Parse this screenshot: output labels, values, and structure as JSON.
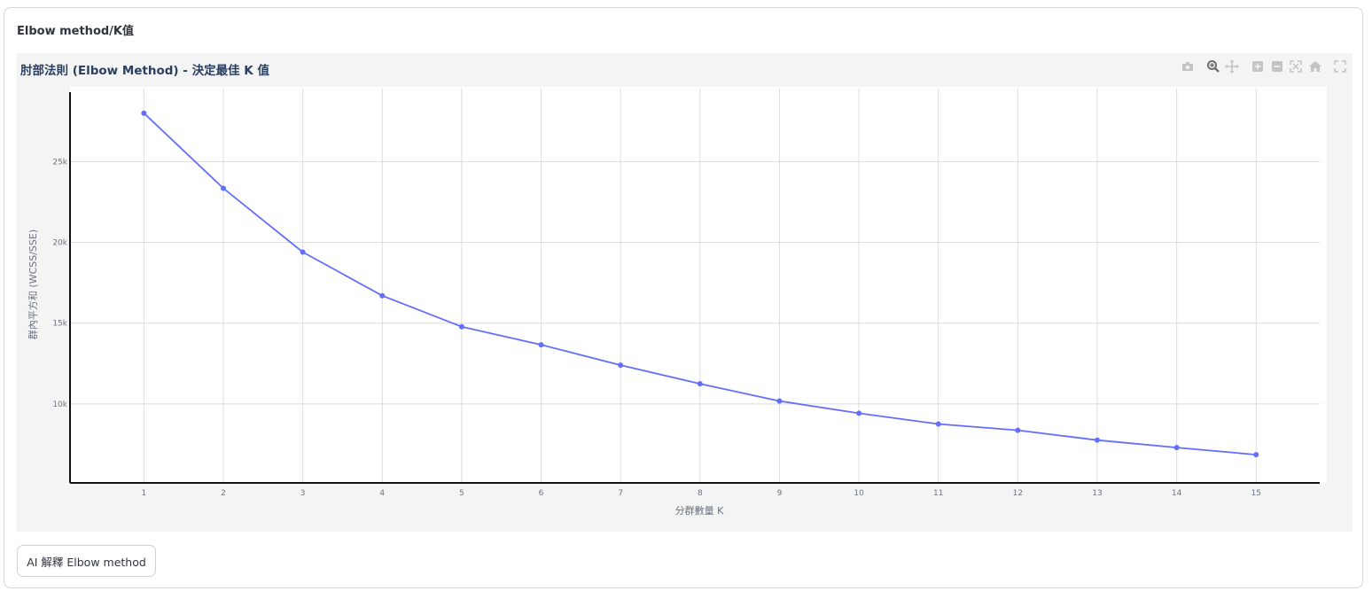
{
  "section": {
    "title": "Elbow method/K值"
  },
  "modebar": {
    "icons": [
      "camera-icon",
      "zoom-icon",
      "pan-icon",
      "zoom-in-icon",
      "zoom-out-icon",
      "autoscale-icon",
      "reset-axes-icon",
      "fullscreen-icon"
    ]
  },
  "chart_data": {
    "type": "line",
    "title": "肘部法則 (Elbow Method) - 決定最佳 K 值",
    "xlabel": "分群數量 K",
    "ylabel": "群內平方和 (WCSS/SSE)",
    "x": [
      1,
      2,
      3,
      4,
      5,
      6,
      7,
      8,
      9,
      10,
      11,
      12,
      13,
      14,
      15
    ],
    "series": [
      {
        "values": [
          28000,
          23350,
          19400,
          16700,
          14780,
          13660,
          12400,
          11250,
          10180,
          9420,
          8760,
          8370,
          7760,
          7300,
          6860
        ]
      }
    ],
    "xticks": [
      "1",
      "2",
      "3",
      "4",
      "5",
      "6",
      "7",
      "8",
      "9",
      "10",
      "11",
      "12",
      "13",
      "14",
      "15"
    ],
    "yticks": [
      {
        "value": 10000,
        "label": "10k"
      },
      {
        "value": 15000,
        "label": "15k"
      },
      {
        "value": 20000,
        "label": "20k"
      },
      {
        "value": 25000,
        "label": "25k"
      }
    ],
    "ylim": [
      5110,
      29520
    ],
    "xlim": [
      0.07,
      15.8
    ],
    "grid": true,
    "line_color": "#636efa",
    "markers": true
  },
  "button": {
    "label": "AI 解釋 Elbow method"
  }
}
